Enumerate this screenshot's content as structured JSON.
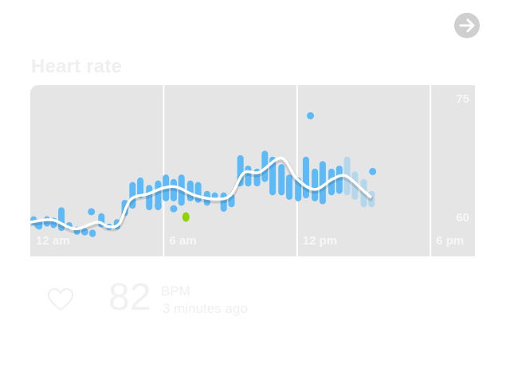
{
  "header": {
    "nav_icon": "arrow-right-icon"
  },
  "card": {
    "title": "Heart rate"
  },
  "reading": {
    "value": "82",
    "unit": "BPM",
    "time": "3 minutes ago",
    "icon": "heart-outline-icon"
  },
  "colors": {
    "bar": "#5dbaf7",
    "line": "#ffffff",
    "highlight": "#8fd400",
    "chart_bg": "#e5e5e5"
  },
  "chart_data": {
    "type": "bar",
    "title": "",
    "xlabel": "",
    "ylabel": "",
    "x_ticks": [
      "12 am",
      "6 am",
      "12 pm",
      "6 pm"
    ],
    "y_ticks": [
      "75",
      "60"
    ],
    "x_unit": "hour of day",
    "xlim": [
      0,
      24
    ],
    "ylim": [
      56,
      79
    ],
    "ranges": [
      {
        "x": 0.15,
        "low": 60.2,
        "high": 61.4
      },
      {
        "x": 0.4,
        "low": 59.6,
        "high": 61.0
      },
      {
        "x": 0.75,
        "low": 60.0,
        "high": 61.4
      },
      {
        "x": 1.05,
        "low": 59.8,
        "high": 61.2
      },
      {
        "x": 1.4,
        "low": 59.4,
        "high": 62.6
      },
      {
        "x": 1.75,
        "low": 59.6,
        "high": 60.6
      },
      {
        "x": 2.1,
        "low": 58.9,
        "high": 60.0
      },
      {
        "x": 2.45,
        "low": 59.0,
        "high": 59.8
      },
      {
        "x": 2.8,
        "low": 58.6,
        "high": 59.6
      },
      {
        "x": 3.2,
        "low": 59.9,
        "high": 61.8
      },
      {
        "x": 3.55,
        "low": 59.6,
        "high": 60.4
      },
      {
        "x": 3.9,
        "low": 59.6,
        "high": 61.0
      },
      {
        "x": 4.25,
        "low": 61.4,
        "high": 63.6
      },
      {
        "x": 4.6,
        "low": 62.4,
        "high": 66.0
      },
      {
        "x": 4.95,
        "low": 63.8,
        "high": 66.6
      },
      {
        "x": 5.35,
        "low": 62.2,
        "high": 65.6
      },
      {
        "x": 5.75,
        "low": 62.2,
        "high": 66.2
      },
      {
        "x": 6.1,
        "low": 63.4,
        "high": 67.0
      },
      {
        "x": 6.45,
        "low": 63.4,
        "high": 66.4
      },
      {
        "x": 6.8,
        "low": 62.8,
        "high": 67.0
      },
      {
        "x": 7.2,
        "low": 63.4,
        "high": 66.2
      },
      {
        "x": 7.55,
        "low": 63.2,
        "high": 66.0
      },
      {
        "x": 7.95,
        "low": 62.8,
        "high": 64.8
      },
      {
        "x": 8.3,
        "low": 63.8,
        "high": 64.6
      },
      {
        "x": 8.7,
        "low": 62.0,
        "high": 64.6
      },
      {
        "x": 9.05,
        "low": 62.6,
        "high": 64.4
      },
      {
        "x": 9.45,
        "low": 65.4,
        "high": 69.6
      },
      {
        "x": 9.8,
        "low": 65.4,
        "high": 68.2
      },
      {
        "x": 10.2,
        "low": 65.4,
        "high": 67.8
      },
      {
        "x": 10.55,
        "low": 66.0,
        "high": 70.2
      },
      {
        "x": 10.9,
        "low": 64.2,
        "high": 69.4
      },
      {
        "x": 11.3,
        "low": 64.2,
        "high": 68.4
      },
      {
        "x": 11.65,
        "low": 63.6,
        "high": 67.0
      },
      {
        "x": 12.05,
        "low": 63.4,
        "high": 66.6
      },
      {
        "x": 12.4,
        "low": 63.8,
        "high": 69.4
      },
      {
        "x": 12.8,
        "low": 63.4,
        "high": 67.8
      },
      {
        "x": 13.15,
        "low": 63.0,
        "high": 68.8
      },
      {
        "x": 13.55,
        "low": 64.2,
        "high": 67.8
      },
      {
        "x": 13.9,
        "low": 64.4,
        "high": 68.2
      }
    ],
    "ranges_faded": [
      {
        "x": 14.25,
        "low": 64.2,
        "high": 69.4
      },
      {
        "x": 14.6,
        "low": 63.6,
        "high": 67.4
      },
      {
        "x": 15.0,
        "low": 62.6,
        "high": 66.4
      },
      {
        "x": 15.35,
        "low": 62.6,
        "high": 64.8
      }
    ],
    "points": [
      {
        "x": 2.75,
        "y": 62.0
      },
      {
        "x": 12.6,
        "y": 74.9
      },
      {
        "x": 15.4,
        "y": 67.4
      },
      {
        "x": 0.35,
        "y": 60.2
      },
      {
        "x": 5.75,
        "y": 62.8
      },
      {
        "x": 6.45,
        "y": 62.4
      },
      {
        "x": 2.45,
        "y": 59.3
      },
      {
        "x": 7.95,
        "y": 64.0
      }
    ],
    "highlight_point": {
      "x": 7.0,
      "y": 61.3
    },
    "trend": [
      {
        "x": 0.0,
        "y": 60.6
      },
      {
        "x": 1.0,
        "y": 60.9
      },
      {
        "x": 2.0,
        "y": 59.7
      },
      {
        "x": 3.0,
        "y": 60.6
      },
      {
        "x": 3.5,
        "y": 60.0
      },
      {
        "x": 4.0,
        "y": 60.4
      },
      {
        "x": 4.5,
        "y": 63.6
      },
      {
        "x": 5.3,
        "y": 64.4
      },
      {
        "x": 6.0,
        "y": 65.2
      },
      {
        "x": 6.6,
        "y": 65.3
      },
      {
        "x": 7.4,
        "y": 64.2
      },
      {
        "x": 8.3,
        "y": 63.7
      },
      {
        "x": 9.0,
        "y": 64.2
      },
      {
        "x": 9.6,
        "y": 67.2
      },
      {
        "x": 10.3,
        "y": 67.3
      },
      {
        "x": 11.3,
        "y": 69.2
      },
      {
        "x": 12.0,
        "y": 66.4
      },
      {
        "x": 12.8,
        "y": 65.0
      },
      {
        "x": 13.6,
        "y": 66.4
      },
      {
        "x": 14.2,
        "y": 66.8
      },
      {
        "x": 15.0,
        "y": 64.8
      },
      {
        "x": 15.3,
        "y": 64.0
      }
    ]
  }
}
